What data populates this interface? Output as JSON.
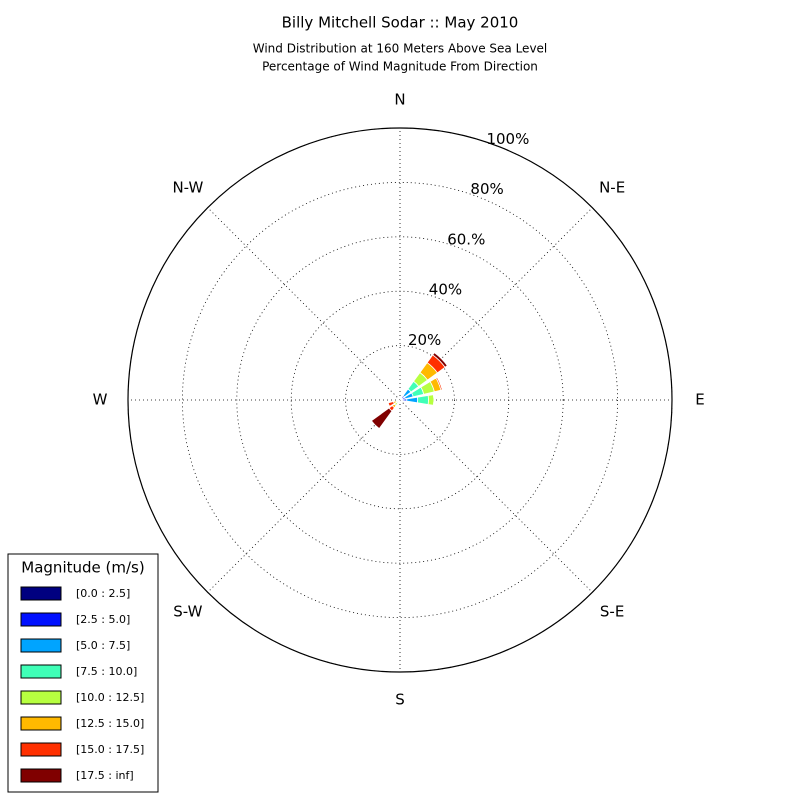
{
  "chart_data": {
    "type": "windrose",
    "title": "Billy Mitchell Sodar :: May 2010",
    "subtitle": [
      "Wind Distribution at 160 Meters Above Sea Level",
      "Percentage of Wind Magnitude From Direction"
    ],
    "legend_title": "Magnitude (m/s)",
    "legend": "lower left",
    "grid": true,
    "x": [
      45,
      67.5,
      90,
      225,
      247.5
    ],
    "xticks": [
      {
        "value": 0,
        "label": "N"
      },
      {
        "value": 45,
        "label": "N-E"
      },
      {
        "value": 90,
        "label": "E"
      },
      {
        "value": 135,
        "label": "S-E"
      },
      {
        "value": 180,
        "label": "S"
      },
      {
        "value": 225,
        "label": "S-W"
      },
      {
        "value": 270,
        "label": "W"
      },
      {
        "value": 315,
        "label": "N-W"
      }
    ],
    "ylim": [
      0,
      100
    ],
    "yticks": [
      {
        "value": 20,
        "label": "20%"
      },
      {
        "value": 40,
        "label": "40%"
      },
      {
        "value": 60,
        "label": "60.%"
      },
      {
        "value": 80,
        "label": "80%"
      },
      {
        "value": 100,
        "label": "100%"
      }
    ],
    "series": [
      {
        "name": "[0.0 : 2.5]",
        "color": "#000080",
        "values": [
          0.5,
          0.5,
          0.5,
          0,
          0
        ]
      },
      {
        "name": "[2.5 : 5.0]",
        "color": "#0010ff",
        "values": [
          1.5,
          1.5,
          2,
          0.5,
          0
        ]
      },
      {
        "name": "[5.0 : 7.5]",
        "color": "#00a4ff",
        "values": [
          3,
          3,
          4,
          0.5,
          0.5
        ]
      },
      {
        "name": "[7.5 : 10.0]",
        "color": "#40ffb7",
        "values": [
          3.5,
          4,
          4,
          0.5,
          0.5
        ]
      },
      {
        "name": "[10.0 : 12.5]",
        "color": "#b7ff40",
        "values": [
          4,
          4,
          2,
          1,
          0.5
        ]
      },
      {
        "name": "[12.5 : 15.0]",
        "color": "#ffb900",
        "values": [
          4.5,
          2.5,
          0,
          1,
          1
        ]
      },
      {
        "name": "[15.0 : 17.5]",
        "color": "#ff3000",
        "values": [
          3.5,
          0.5,
          0,
          1.5,
          2
        ]
      },
      {
        "name": "[17.5 : inf]",
        "color": "#800000",
        "values": [
          1,
          0,
          0,
          8,
          0
        ]
      }
    ]
  }
}
